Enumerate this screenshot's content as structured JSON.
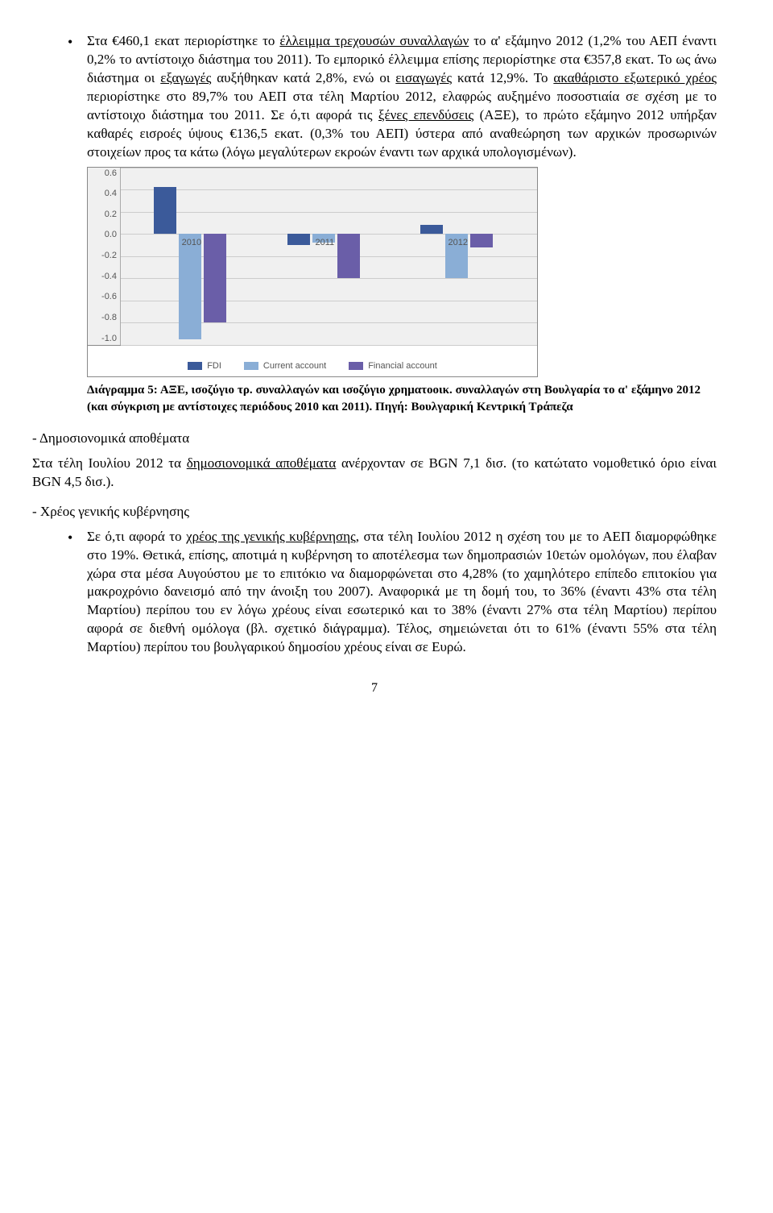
{
  "para1_a": "Στα €460,1 εκατ περιορίστηκε το ",
  "para1_u1": "έλλειμμα τρεχουσών συναλλαγών",
  "para1_b": " το α' εξάμηνο 2012 (1,2% του ΑΕΠ έναντι 0,2% το αντίστοιχο διάστημα του 2011). Το εμπορικό έλλειμμα επίσης περιορίστηκε στα €357,8 εκατ. Το ως άνω διάστημα οι ",
  "para1_u2": "εξαγωγές",
  "para1_c": " αυξήθηκαν κατά 2,8%, ενώ οι ",
  "para1_u3": "εισαγωγές",
  "para1_d": " κατά 12,9%. Το ",
  "para1_u4": "ακαθάριστο εξωτερικό χρέος",
  "para1_e": " περιορίστηκε στο 89,7% του ΑΕΠ στα τέλη Μαρτίου 2012, ελαφρώς αυξημένο ποσοστιαία σε σχέση με το αντίστοιχο διάστημα του 2011. Σε ό,τι αφορά τις ",
  "para1_u5": "ξένες επενδύσεις",
  "para1_f": " (ΑΞΕ), το πρώτο εξάμηνο 2012 υπήρξαν καθαρές εισροές ύψους €136,5 εκατ. (0,3% του ΑΕΠ) ύστερα από αναθεώρηση των αρχικών προσωρινών στοιχείων προς τα κάτω (λόγω μεγαλύτερων εκροών έναντι των αρχικά υπολογισμένων).",
  "chart": {
    "ylabels": [
      "0.6",
      "0.4",
      "0.2",
      "0.0",
      "-0.2",
      "-0.4",
      "-0.6",
      "-0.8",
      "-1.0"
    ],
    "ymax": 0.6,
    "ymin": -1.0,
    "years": [
      "2010",
      "2011",
      "2012"
    ],
    "series": {
      "fdi": {
        "label": "FDI",
        "color": "#3b5a9a",
        "vals": [
          0.42,
          -0.1,
          0.08
        ]
      },
      "current": {
        "label": "Current account",
        "color": "#8aaed6",
        "vals": [
          -0.95,
          -0.08,
          -0.4
        ]
      },
      "financial": {
        "label": "Financial account",
        "color": "#6a5ea8",
        "vals": [
          -0.8,
          -0.4,
          -0.12
        ]
      }
    },
    "grid_color": "#cccccc",
    "bg": "#f0f0f0"
  },
  "caption": "Διάγραμμα 5: ΑΞΕ, ισοζύγιο τρ. συναλλαγών και ισοζύγιο χρηματοοικ. συναλλαγών στη Βουλγαρία το α' εξάμηνο 2012 (και σύγκριση με αντίστοιχες περιόδους 2010 και 2011). Πηγή: Βουλγαρική Κεντρική Τράπεζα",
  "h1": "- Δημοσιονομικά αποθέματα",
  "p2_a": "Στα τέλη Ιουλίου 2012 τα ",
  "p2_u": "δημοσιονομικά αποθέματα",
  "p2_b": " ανέρχονταν σε BGN 7,1 δισ. (το κατώτατο νομοθετικό όριο είναι BGN 4,5 δισ.).",
  "h2": "- Χρέος γενικής κυβέρνησης",
  "p3_a": "Σε ό,τι αφορά το ",
  "p3_u": "χρέος της γενικής κυβέρνησης",
  "p3_b": ", στα τέλη Ιουλίου 2012 η σχέση του με το ΑΕΠ διαμορφώθηκε στο 19%. Θετικά, επίσης, αποτιμά η κυβέρνηση το αποτέλεσμα των δημοπρασιών 10ετών ομολόγων, που έλαβαν χώρα στα μέσα Αυγούστου με το επιτόκιο να διαμορφώνεται στο 4,28% (το χαμηλότερο επίπεδο επιτοκίου για μακροχρόνιο δανεισμό από την άνοιξη του 2007). Αναφορικά με τη δομή του, το 36% (έναντι 43% στα τέλη Μαρτίου) περίπου του εν λόγω χρέους είναι εσωτερικό και το 38% (έναντι 27% στα τέλη Μαρτίου) περίπου αφορά σε διεθνή ομόλογα (βλ. σχετικό διάγραμμα). Τέλος, σημειώνεται ότι το 61% (έναντι 55% στα τέλη Μαρτίου) περίπου του βουλγαρικού δημοσίου χρέους είναι σε Ευρώ.",
  "page": "7"
}
